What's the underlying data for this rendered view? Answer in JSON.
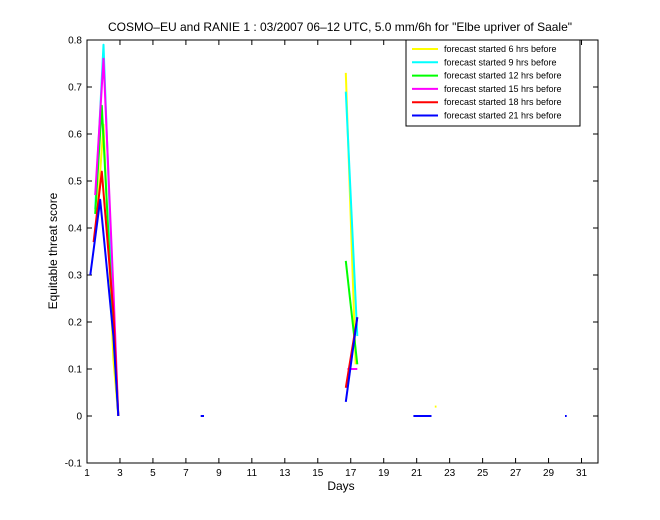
{
  "chart_data": {
    "type": "line",
    "title": "COSMO–EU and RANIE 1 : 03/2007 06–12 UTC, 5.0 mm/6h for \"Elbe upriver of Saale\"",
    "xlabel": "Days",
    "ylabel": "Equitable threat score",
    "xlim": [
      1,
      32
    ],
    "ylim": [
      -0.1,
      0.8
    ],
    "xticks": [
      1,
      3,
      5,
      7,
      9,
      11,
      13,
      15,
      17,
      19,
      21,
      23,
      25,
      27,
      29,
      31
    ],
    "xtick_labels": [
      "1",
      "3",
      "5",
      "7",
      "9",
      "11",
      "13",
      "15",
      "17",
      "19",
      "21",
      "23",
      "25",
      "27",
      "29",
      "31"
    ],
    "yticks": [
      -0.1,
      0,
      0.1,
      0.2,
      0.3,
      0.4,
      0.5,
      0.6,
      0.7,
      0.8
    ],
    "ytick_labels": [
      "-0.1",
      "0",
      "0.1",
      "0.2",
      "0.3",
      "0.4",
      "0.5",
      "0.6",
      "0.7",
      "0.8"
    ],
    "grid": false,
    "legend_position": "top-right",
    "series": [
      {
        "name": "forecast started 6 hrs before",
        "color": "#ffff00",
        "segments": [
          [
            [
              1.6,
              0.42
            ],
            [
              2.0,
              0.62
            ],
            [
              2.6,
              0.12
            ],
            [
              2.9,
              0.0
            ]
          ],
          [
            [
              16.7,
              0.73
            ],
            [
              17.3,
              0.11
            ]
          ],
          [
            [
              21.0,
              0.0
            ],
            [
              21.6,
              0.0
            ]
          ],
          [
            [
              22.1,
              0.02
            ],
            [
              22.2,
              0.02
            ]
          ]
        ]
      },
      {
        "name": "forecast started 9 hrs before",
        "color": "#00ffff",
        "segments": [
          [
            [
              1.5,
              0.44
            ],
            [
              2.0,
              0.79
            ],
            [
              2.6,
              0.22
            ],
            [
              2.9,
              0.0
            ]
          ],
          [
            [
              16.7,
              0.69
            ],
            [
              17.4,
              0.17
            ]
          ]
        ]
      },
      {
        "name": "forecast started 12 hrs before",
        "color": "#00ff00",
        "segments": [
          [
            [
              1.5,
              0.43
            ],
            [
              1.9,
              0.66
            ],
            [
              2.6,
              0.18
            ],
            [
              2.9,
              0.0
            ]
          ],
          [
            [
              16.7,
              0.33
            ],
            [
              17.4,
              0.11
            ]
          ]
        ]
      },
      {
        "name": "forecast started 15 hrs before",
        "color": "#ff00ff",
        "segments": [
          [
            [
              1.5,
              0.47
            ],
            [
              2.0,
              0.76
            ],
            [
              2.6,
              0.27
            ],
            [
              2.9,
              0.0
            ]
          ],
          [
            [
              16.8,
              0.1
            ],
            [
              17.4,
              0.1
            ]
          ]
        ]
      },
      {
        "name": "forecast started 18 hrs before",
        "color": "#ff0000",
        "segments": [
          [
            [
              1.4,
              0.37
            ],
            [
              1.9,
              0.52
            ],
            [
              2.6,
              0.22
            ],
            [
              2.9,
              0.0
            ]
          ],
          [
            [
              16.7,
              0.06
            ],
            [
              17.4,
              0.21
            ]
          ]
        ]
      },
      {
        "name": "forecast started 21 hrs before",
        "color": "#0000ff",
        "segments": [
          [
            [
              1.2,
              0.3
            ],
            [
              1.8,
              0.46
            ],
            [
              2.6,
              0.17
            ],
            [
              2.9,
              0.0
            ]
          ],
          [
            [
              16.7,
              0.03
            ],
            [
              17.4,
              0.21
            ]
          ],
          [
            [
              7.9,
              0.0
            ],
            [
              8.1,
              0.0
            ]
          ],
          [
            [
              20.8,
              0.0
            ],
            [
              21.9,
              0.0
            ]
          ],
          [
            [
              30.0,
              0.0
            ],
            [
              30.1,
              0.0
            ]
          ]
        ]
      }
    ]
  }
}
